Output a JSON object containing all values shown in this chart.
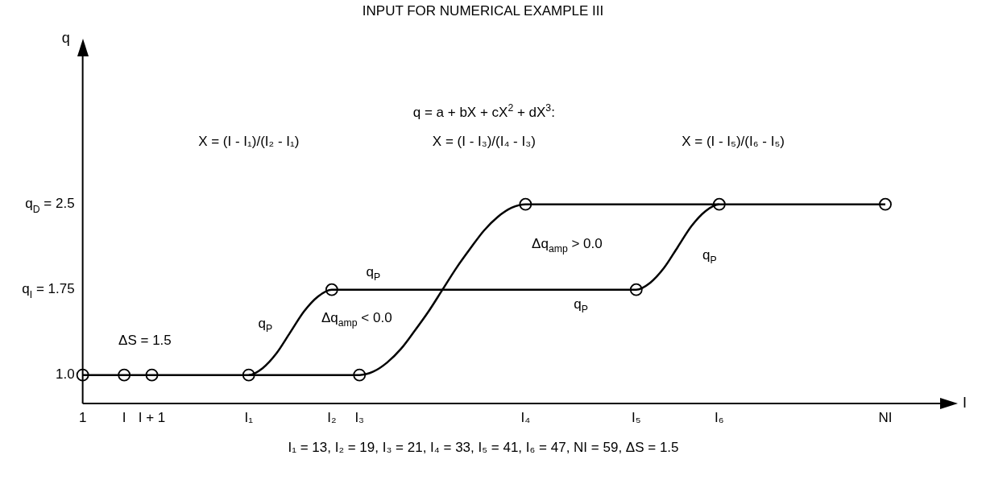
{
  "chart_data": {
    "type": "line",
    "title": "INPUT FOR NUMERICAL EXAMPLE III",
    "xlabel": "I",
    "ylabel": "q",
    "categories": [
      "1",
      null,
      null,
      "I",
      null,
      "I + 1",
      null,
      null,
      null,
      null,
      null,
      null,
      "I₁",
      null,
      null,
      null,
      null,
      null,
      "I₂",
      null,
      "I₃",
      null,
      null,
      null,
      null,
      null,
      null,
      null,
      null,
      null,
      null,
      null,
      "I₄",
      null,
      null,
      null,
      null,
      null,
      null,
      null,
      "I₅",
      null,
      null,
      null,
      null,
      null,
      "I₆",
      null,
      null,
      null,
      null,
      null,
      null,
      null,
      null,
      null,
      null,
      null,
      "NI"
    ],
    "ylim": [
      0.75,
      3.8
    ],
    "yticks": [
      {
        "value": 1,
        "label": "1.0"
      },
      {
        "value": 1.75,
        "label": "q$_{I}$ = 1.75"
      },
      {
        "value": 2.5,
        "label": "q$_{D}$ = 2.5"
      }
    ],
    "series": [
      {
        "color": "#000000",
        "values": [
          1,
          1,
          1,
          1,
          1,
          1,
          1,
          1,
          1,
          1,
          1,
          1,
          1,
          1.06,
          1.19,
          1.375,
          1.56,
          1.69,
          1.75,
          1.75,
          1.75,
          1.75,
          1.75,
          1.75,
          1.75,
          1.75,
          1.75,
          1.75,
          1.75,
          1.75,
          1.75,
          1.75,
          1.75,
          1.75,
          1.75,
          1.75,
          1.75,
          1.75,
          1.75,
          1.75,
          1.75,
          1.81,
          1.94,
          2.125,
          2.31,
          2.44,
          2.5,
          2.5,
          2.5,
          2.5,
          2.5,
          2.5,
          2.5,
          2.5,
          2.5,
          2.5,
          2.5,
          2.5,
          2.5
        ]
      },
      {
        "color": "#000000",
        "values": [
          null,
          null,
          null,
          null,
          null,
          null,
          null,
          null,
          null,
          null,
          null,
          null,
          1,
          1,
          1,
          1,
          1,
          1,
          1,
          1,
          1,
          1.03,
          1.11,
          1.23,
          1.39,
          1.56,
          1.75,
          1.94,
          2.11,
          2.27,
          2.39,
          2.47,
          2.5,
          2.5,
          2.5,
          2.5,
          2.5,
          2.5,
          2.5,
          2.5,
          2.5,
          2.5,
          2.5,
          2.5,
          2.5,
          2.5,
          2.5,
          null,
          null,
          null,
          null,
          null,
          null,
          null,
          null,
          null,
          null,
          null,
          null
        ]
      },
      {
        "type": "scatter",
        "marker": "circle",
        "color": "#000000",
        "values": [
          1,
          null,
          null,
          1,
          null,
          1,
          null,
          null,
          null,
          null,
          null,
          null,
          1,
          null,
          null,
          null,
          null,
          null,
          1.75,
          null,
          1,
          null,
          null,
          null,
          null,
          null,
          null,
          null,
          null,
          null,
          null,
          null,
          2.5,
          null,
          null,
          null,
          null,
          null,
          null,
          null,
          1.75,
          null,
          null,
          null,
          null,
          null,
          2.5,
          null,
          null,
          null,
          null,
          null,
          null,
          null,
          null,
          null,
          null,
          null,
          2.5
        ]
      }
    ],
    "legend": false,
    "grid": false,
    "annotations": [
      "q = a + bX + cX$^{2}$ + dX$^{3}$:",
      "X = (I - I₁)/(I₂ - I₁)",
      "X = (I - I₃)/(I₄ - I₃)",
      "X = (I - I₅)/(I₆ - I₅)",
      "q$_{P}$",
      "q$_{P}$",
      "q$_{P}$",
      "q$_{P}$",
      "Δq$_{amp}$ < 0.0",
      "Δq$_{amp}$ > 0.0",
      "ΔS = 1.5",
      "I₁ = 13, I₂ = 19, I₃ = 21, I₄ = 33, I₅ = 41, I₆ = 47, NI = 59, ΔS = 1.5"
    ]
  }
}
